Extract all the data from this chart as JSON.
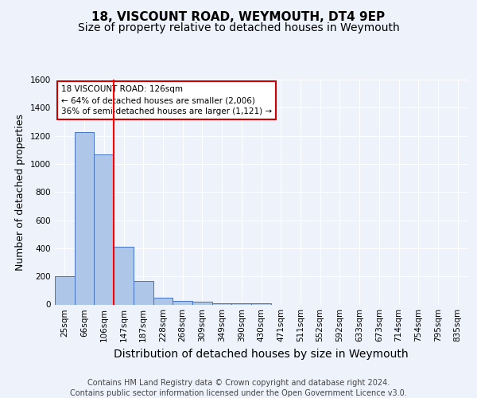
{
  "title1": "18, VISCOUNT ROAD, WEYMOUTH, DT4 9EP",
  "title2": "Size of property relative to detached houses in Weymouth",
  "xlabel": "Distribution of detached houses by size in Weymouth",
  "ylabel": "Number of detached properties",
  "categories": [
    "25sqm",
    "66sqm",
    "106sqm",
    "147sqm",
    "187sqm",
    "228sqm",
    "268sqm",
    "309sqm",
    "349sqm",
    "390sqm",
    "430sqm",
    "471sqm",
    "511sqm",
    "552sqm",
    "592sqm",
    "633sqm",
    "673sqm",
    "714sqm",
    "754sqm",
    "795sqm",
    "835sqm"
  ],
  "values": [
    200,
    1225,
    1065,
    410,
    165,
    50,
    25,
    20,
    10,
    10,
    10,
    0,
    0,
    0,
    0,
    0,
    0,
    0,
    0,
    0,
    0
  ],
  "bar_color": "#aec6e8",
  "bar_edge_color": "#4472c4",
  "ylim": [
    0,
    1600
  ],
  "yticks": [
    0,
    200,
    400,
    600,
    800,
    1000,
    1200,
    1400,
    1600
  ],
  "red_line_x": 2.5,
  "annotation_title": "18 VISCOUNT ROAD: 126sqm",
  "annotation_line1": "← 64% of detached houses are smaller (2,006)",
  "annotation_line2": "36% of semi-detached houses are larger (1,121) →",
  "annotation_box_color": "#ffffff",
  "annotation_box_edge": "#cc0000",
  "footer1": "Contains HM Land Registry data © Crown copyright and database right 2024.",
  "footer2": "Contains public sector information licensed under the Open Government Licence v3.0.",
  "bg_color": "#eef3fb",
  "plot_bg_color": "#eef3fb",
  "grid_color": "#ffffff",
  "title1_fontsize": 11,
  "title2_fontsize": 10,
  "axis_label_fontsize": 9,
  "tick_fontsize": 7.5,
  "footer_fontsize": 7,
  "annotation_fontsize": 7.5
}
